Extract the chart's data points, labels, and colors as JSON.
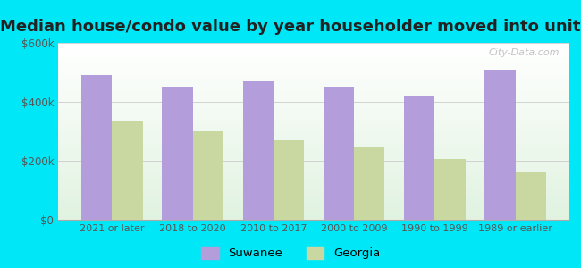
{
  "title": "Median house/condo value by year householder moved into unit",
  "categories": [
    "2021 or later",
    "2018 to 2020",
    "2010 to 2017",
    "2000 to 2009",
    "1990 to 1999",
    "1989 or earlier"
  ],
  "suwanee_values": [
    490000,
    450000,
    470000,
    450000,
    420000,
    510000
  ],
  "georgia_values": [
    335000,
    300000,
    270000,
    245000,
    205000,
    165000
  ],
  "suwanee_color": "#b39ddb",
  "georgia_color": "#c8d8a0",
  "background_outer": "#00e8f8",
  "ylim": [
    0,
    600000
  ],
  "yticks": [
    0,
    200000,
    400000,
    600000
  ],
  "ytick_labels": [
    "$0",
    "$200k",
    "$400k",
    "$600k"
  ],
  "title_fontsize": 13,
  "legend_labels": [
    "Suwanee",
    "Georgia"
  ],
  "watermark_text": "City-Data.com",
  "bar_width": 0.38
}
